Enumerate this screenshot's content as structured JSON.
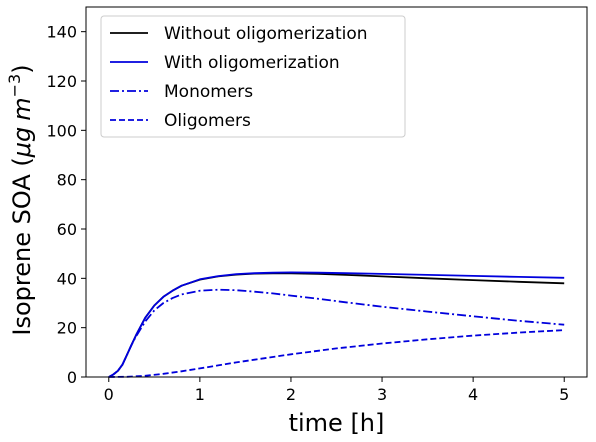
{
  "chart_data": {
    "type": "line",
    "xlabel": "time [h]",
    "ylabel": {
      "prefix": "Isoprene SOA (",
      "mu": "μ",
      "g": "g",
      "m": "m",
      "exp": "−3",
      "suffix": ")"
    },
    "xlim": [
      -0.25,
      5.25
    ],
    "ylim": [
      0,
      150
    ],
    "xticks": [
      0,
      1,
      2,
      3,
      4,
      5
    ],
    "yticks": [
      0,
      20,
      40,
      60,
      80,
      100,
      120,
      140
    ],
    "grid": false,
    "legend_position": "top-left",
    "series": [
      {
        "name": "Without oligomerization",
        "color": "#000000",
        "style": "solid",
        "x": [
          0,
          0.05,
          0.1,
          0.15,
          0.2,
          0.25,
          0.3,
          0.4,
          0.5,
          0.6,
          0.7,
          0.8,
          1.0,
          1.2,
          1.4,
          1.6,
          1.8,
          2.0,
          2.3,
          2.6,
          3.0,
          3.5,
          4.0,
          4.5,
          5.0
        ],
        "y": [
          0,
          1,
          2.5,
          5,
          9,
          13,
          17,
          24,
          29,
          32.5,
          35,
          37,
          39.5,
          40.8,
          41.5,
          41.9,
          42.0,
          42.0,
          41.8,
          41.4,
          40.8,
          40.0,
          39.3,
          38.6,
          38.0
        ]
      },
      {
        "name": "With oligomerization",
        "color": "#0000dd",
        "style": "solid",
        "x": [
          0,
          0.05,
          0.1,
          0.15,
          0.2,
          0.25,
          0.3,
          0.4,
          0.5,
          0.6,
          0.7,
          0.8,
          1.0,
          1.2,
          1.4,
          1.6,
          1.8,
          2.0,
          2.3,
          2.6,
          3.0,
          3.5,
          4.0,
          4.5,
          5.0
        ],
        "y": [
          0,
          1,
          2.5,
          5,
          9,
          13,
          17,
          24,
          29,
          32.5,
          35,
          37,
          39.6,
          40.9,
          41.7,
          42.1,
          42.3,
          42.4,
          42.3,
          42.1,
          41.8,
          41.4,
          41.0,
          40.6,
          40.2
        ]
      },
      {
        "name": "Monomers",
        "color": "#0000dd",
        "style": "dashdot",
        "x": [
          0,
          0.05,
          0.1,
          0.15,
          0.2,
          0.25,
          0.3,
          0.4,
          0.5,
          0.6,
          0.7,
          0.8,
          1.0,
          1.2,
          1.4,
          1.6,
          1.8,
          2.0,
          2.3,
          2.6,
          3.0,
          3.5,
          4.0,
          4.5,
          5.0
        ],
        "y": [
          0,
          1,
          2.5,
          5,
          9,
          13,
          16.5,
          22.5,
          27,
          30,
          32,
          33.5,
          35,
          35.4,
          35.2,
          34.6,
          33.9,
          33.0,
          31.7,
          30.3,
          28.5,
          26.5,
          24.6,
          22.8,
          21.2
        ]
      },
      {
        "name": "Oligomers",
        "color": "#0000dd",
        "style": "dashed",
        "x": [
          0,
          0.2,
          0.4,
          0.6,
          0.8,
          1.0,
          1.2,
          1.4,
          1.6,
          1.8,
          2.0,
          2.5,
          3.0,
          3.5,
          4.0,
          4.5,
          5.0
        ],
        "y": [
          0,
          0.1,
          0.5,
          1.3,
          2.3,
          3.5,
          4.7,
          5.9,
          7.0,
          8.1,
          9.2,
          11.6,
          13.6,
          15.3,
          16.8,
          18.0,
          19.0
        ]
      }
    ]
  }
}
